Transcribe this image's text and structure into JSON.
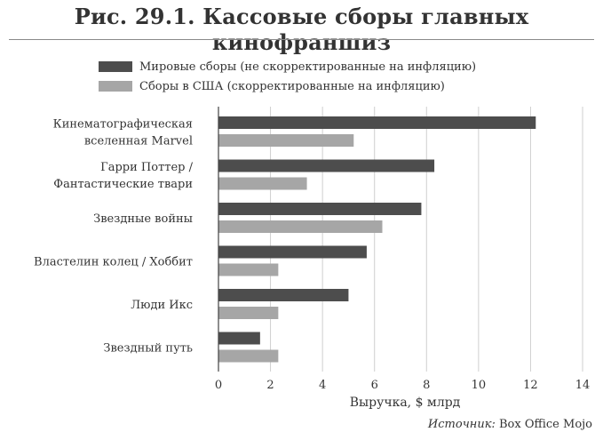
{
  "title": "Рис. 29.1. Кассовые сборы главных кинофраншиз",
  "source": {
    "prefix": "Источник:",
    "text": "Box Office Mojo"
  },
  "colors": {
    "worldwide": "#4d4d4d",
    "us": "#a6a6a6",
    "grid": "#cfcfcf",
    "axis": "#444444"
  },
  "chart_data": {
    "type": "bar",
    "orientation": "horizontal",
    "categories": [
      [
        "Кинематографическая",
        "вселенная Marvel"
      ],
      [
        "Гарри Поттер /",
        "Фантастические твари"
      ],
      [
        "Звездные войны"
      ],
      [
        "Властелин колец / Хоббит"
      ],
      [
        "Люди Икс"
      ],
      [
        "Звездный путь"
      ]
    ],
    "series": [
      {
        "name": "Мировые сборы (не скорректированные на инфляцию)",
        "values": [
          12.2,
          8.3,
          7.8,
          5.7,
          5.0,
          1.6
        ]
      },
      {
        "name": "Сборы в США (скорректированные на инфляцию)",
        "values": [
          5.2,
          3.4,
          6.3,
          2.3,
          2.3,
          2.3
        ]
      }
    ],
    "xlabel": "Выручка, $ млрд",
    "xlim": [
      0,
      14
    ],
    "xticks": [
      0,
      2,
      4,
      6,
      8,
      10,
      12,
      14
    ],
    "grid": "vertical",
    "legend": "top-left"
  }
}
